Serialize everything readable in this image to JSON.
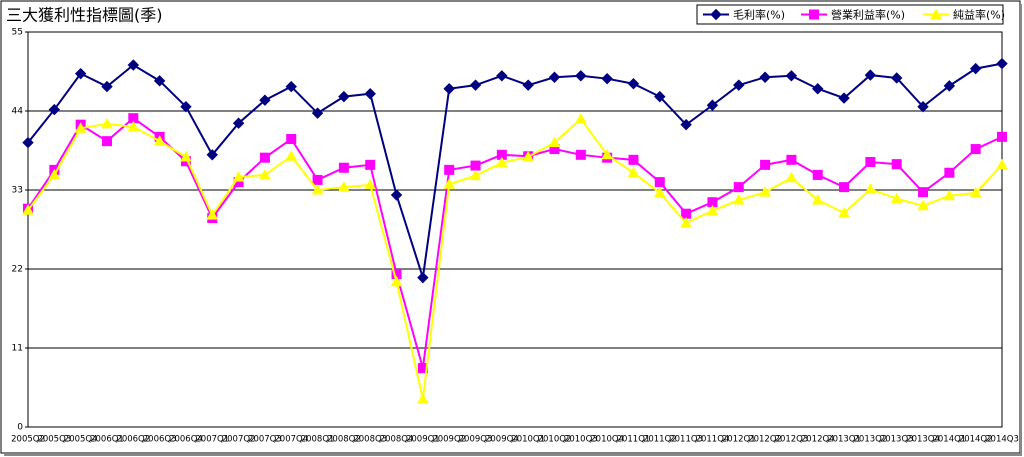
{
  "chart_data": {
    "type": "line",
    "title": "三大獲利性指標圖(季)",
    "categories": [
      "2005Q2",
      "2005Q3",
      "2005Q4",
      "2006Q1",
      "2006Q2",
      "2006Q3",
      "2006Q4",
      "2007Q1",
      "2007Q2",
      "2007Q3",
      "2007Q4",
      "2008Q1",
      "2008Q2",
      "2008Q3",
      "2008Q4",
      "2009Q1",
      "2009Q2",
      "2009Q3",
      "2009Q4",
      "2010Q1",
      "2010Q2",
      "2010Q3",
      "2010Q4",
      "2011Q1",
      "2011Q2",
      "2011Q3",
      "2011Q4",
      "2012Q1",
      "2012Q2",
      "2012Q3",
      "2012Q4",
      "2013Q1",
      "2013Q2",
      "2013Q3",
      "2013Q4",
      "2014Q1",
      "2014Q2",
      "2014Q3"
    ],
    "series": [
      {
        "name": "毛利率(%)",
        "color": "#000080",
        "marker": "diamond",
        "values": [
          39.6,
          44.2,
          49.2,
          47.4,
          50.4,
          48.2,
          44.6,
          37.9,
          42.3,
          45.5,
          47.4,
          43.7,
          46.0,
          46.4,
          32.3,
          20.8,
          47.1,
          47.6,
          48.9,
          47.6,
          48.7,
          48.9,
          48.5,
          47.8,
          46.0,
          42.1,
          44.8,
          47.6,
          48.7,
          48.9,
          47.1,
          45.8,
          49.0,
          48.6,
          44.6,
          47.5,
          49.9,
          50.6
        ]
      },
      {
        "name": "營業利益率(%)",
        "color": "#ff00ff",
        "marker": "square",
        "values": [
          30.4,
          35.8,
          42.1,
          39.8,
          43.0,
          40.4,
          37.0,
          29.1,
          34.1,
          37.5,
          40.1,
          34.4,
          36.1,
          36.5,
          21.3,
          8.2,
          35.8,
          36.4,
          37.9,
          37.7,
          38.7,
          37.9,
          37.5,
          37.2,
          34.1,
          29.7,
          31.3,
          33.4,
          36.5,
          37.2,
          35.1,
          33.4,
          36.9,
          36.6,
          32.7,
          35.4,
          38.7,
          40.4
        ]
      },
      {
        "name": "純益率(%)",
        "color": "#ffff00",
        "marker": "triangle",
        "values": [
          30.2,
          35.1,
          41.6,
          42.2,
          41.8,
          39.8,
          37.6,
          29.5,
          34.8,
          35.1,
          37.7,
          33.0,
          33.4,
          33.7,
          20.2,
          3.9,
          33.8,
          35.0,
          36.8,
          37.6,
          39.6,
          42.9,
          37.9,
          35.4,
          32.6,
          28.4,
          30.1,
          31.6,
          32.7,
          34.7,
          31.6,
          29.8,
          33.1,
          31.8,
          30.8,
          32.2,
          32.6,
          36.5
        ]
      }
    ],
    "ylim": [
      0,
      55
    ],
    "yticks": [
      0,
      11,
      22,
      33,
      44,
      55
    ],
    "grid": true,
    "legend": "top-right"
  }
}
